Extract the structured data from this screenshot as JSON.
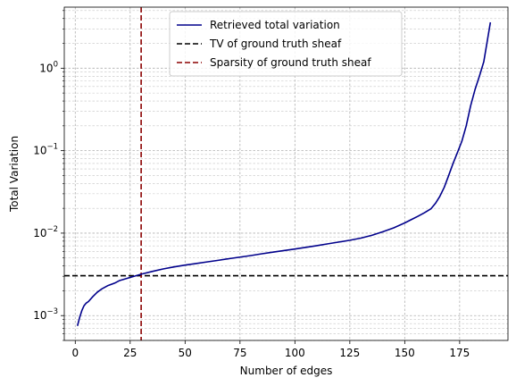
{
  "chart_data": {
    "type": "line",
    "xlabel": "Number of edges",
    "ylabel": "Total Variation",
    "xlim": [
      -5,
      197
    ],
    "ylim": [
      0.0005,
      5.5
    ],
    "yscale": "log",
    "grid": "both (major and minor), dashed",
    "legend_placement": "top-center",
    "x_ticks": [
      0,
      25,
      50,
      75,
      100,
      125,
      150,
      175
    ],
    "y_ticks": [
      {
        "value": 0.001,
        "base": "10",
        "exp": "−3"
      },
      {
        "value": 0.01,
        "base": "10",
        "exp": "−2"
      },
      {
        "value": 0.1,
        "base": "10",
        "exp": "−1"
      },
      {
        "value": 1,
        "base": "10",
        "exp": "0"
      }
    ],
    "series": [
      {
        "name": "Retrieved total variation",
        "color": "#00008b",
        "style": "solid",
        "x": [
          1,
          2,
          3,
          4,
          5,
          6,
          8,
          10,
          12,
          15,
          18,
          20,
          25,
          30,
          35,
          40,
          45,
          50,
          55,
          60,
          65,
          70,
          75,
          80,
          85,
          90,
          95,
          100,
          105,
          110,
          115,
          120,
          125,
          130,
          135,
          140,
          145,
          150,
          153,
          156,
          159,
          162,
          164,
          166,
          168,
          170,
          172,
          174,
          176,
          178,
          180,
          182,
          184,
          186,
          189
        ],
        "y": [
          0.00075,
          0.00095,
          0.00115,
          0.00132,
          0.00142,
          0.00148,
          0.0017,
          0.00192,
          0.0021,
          0.00232,
          0.00248,
          0.00265,
          0.0029,
          0.00318,
          0.00343,
          0.00368,
          0.0039,
          0.0041,
          0.00428,
          0.00448,
          0.00468,
          0.0049,
          0.00512,
          0.00535,
          0.00562,
          0.00588,
          0.00615,
          0.00642,
          0.00672,
          0.00705,
          0.00742,
          0.0078,
          0.0082,
          0.0087,
          0.0094,
          0.0104,
          0.0116,
          0.0133,
          0.0146,
          0.016,
          0.0177,
          0.0198,
          0.023,
          0.028,
          0.036,
          0.05,
          0.07,
          0.095,
          0.13,
          0.2,
          0.35,
          0.55,
          0.8,
          1.2,
          3.6
        ]
      },
      {
        "name": "TV of ground truth sheaf",
        "color": "#000000",
        "style": "dashed",
        "orientation": "horizontal",
        "value": 0.00305
      },
      {
        "name": "Sparsity of ground truth sheaf",
        "color": "#8b0000",
        "style": "dashed",
        "orientation": "vertical",
        "value": 30
      }
    ]
  }
}
